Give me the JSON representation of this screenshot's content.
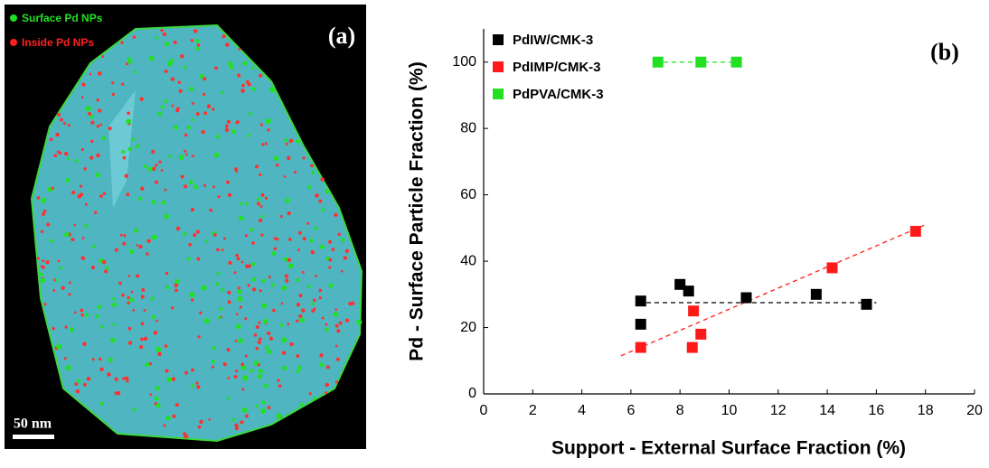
{
  "image_panel": {
    "label": "(a)",
    "legend": [
      "Surface Pd NPs",
      "Inside Pd NPs"
    ],
    "scale_bar": "50 nm"
  },
  "chart_data": {
    "type": "scatter",
    "label": "(b)",
    "x_label": "Support - External Surface Fraction (%)",
    "y_label": "Pd - Surface Particle Fraction (%)",
    "xlim": [
      0,
      20
    ],
    "xticks": [
      0,
      2,
      4,
      6,
      8,
      10,
      12,
      14,
      16,
      18,
      20
    ],
    "ylim": [
      0,
      110
    ],
    "yticks": [
      0,
      20,
      40,
      60,
      80,
      100
    ],
    "legend": "upper left",
    "series": [
      {
        "name": "PdIW/CMK-3",
        "color": "#000000",
        "x": [
          6.4,
          6.4,
          8.0,
          8.35,
          10.7,
          13.55,
          15.6
        ],
        "values": [
          28,
          21,
          33,
          31,
          29,
          30,
          27
        ]
      },
      {
        "name": "PdIMP/CMK-3",
        "color": "#ff1a1a",
        "x": [
          6.4,
          8.55,
          8.5,
          8.85,
          14.2,
          17.6
        ],
        "values": [
          14,
          25,
          14,
          18,
          38,
          49
        ]
      },
      {
        "name": "PdPVA/CMK-3",
        "color": "#22e022",
        "x": [
          7.1,
          8.85,
          10.3
        ],
        "values": [
          100,
          100,
          100
        ]
      }
    ],
    "trend_lines": [
      {
        "color": "#000000",
        "x": [
          6.3,
          16
        ],
        "values": [
          27.5,
          27.5
        ]
      },
      {
        "color": "#ff1a1a",
        "x": [
          5.6,
          18
        ],
        "values": [
          11.5,
          51
        ]
      },
      {
        "color": "#22e022",
        "x": [
          7.0,
          10.6
        ],
        "values": [
          100,
          100
        ]
      }
    ]
  }
}
